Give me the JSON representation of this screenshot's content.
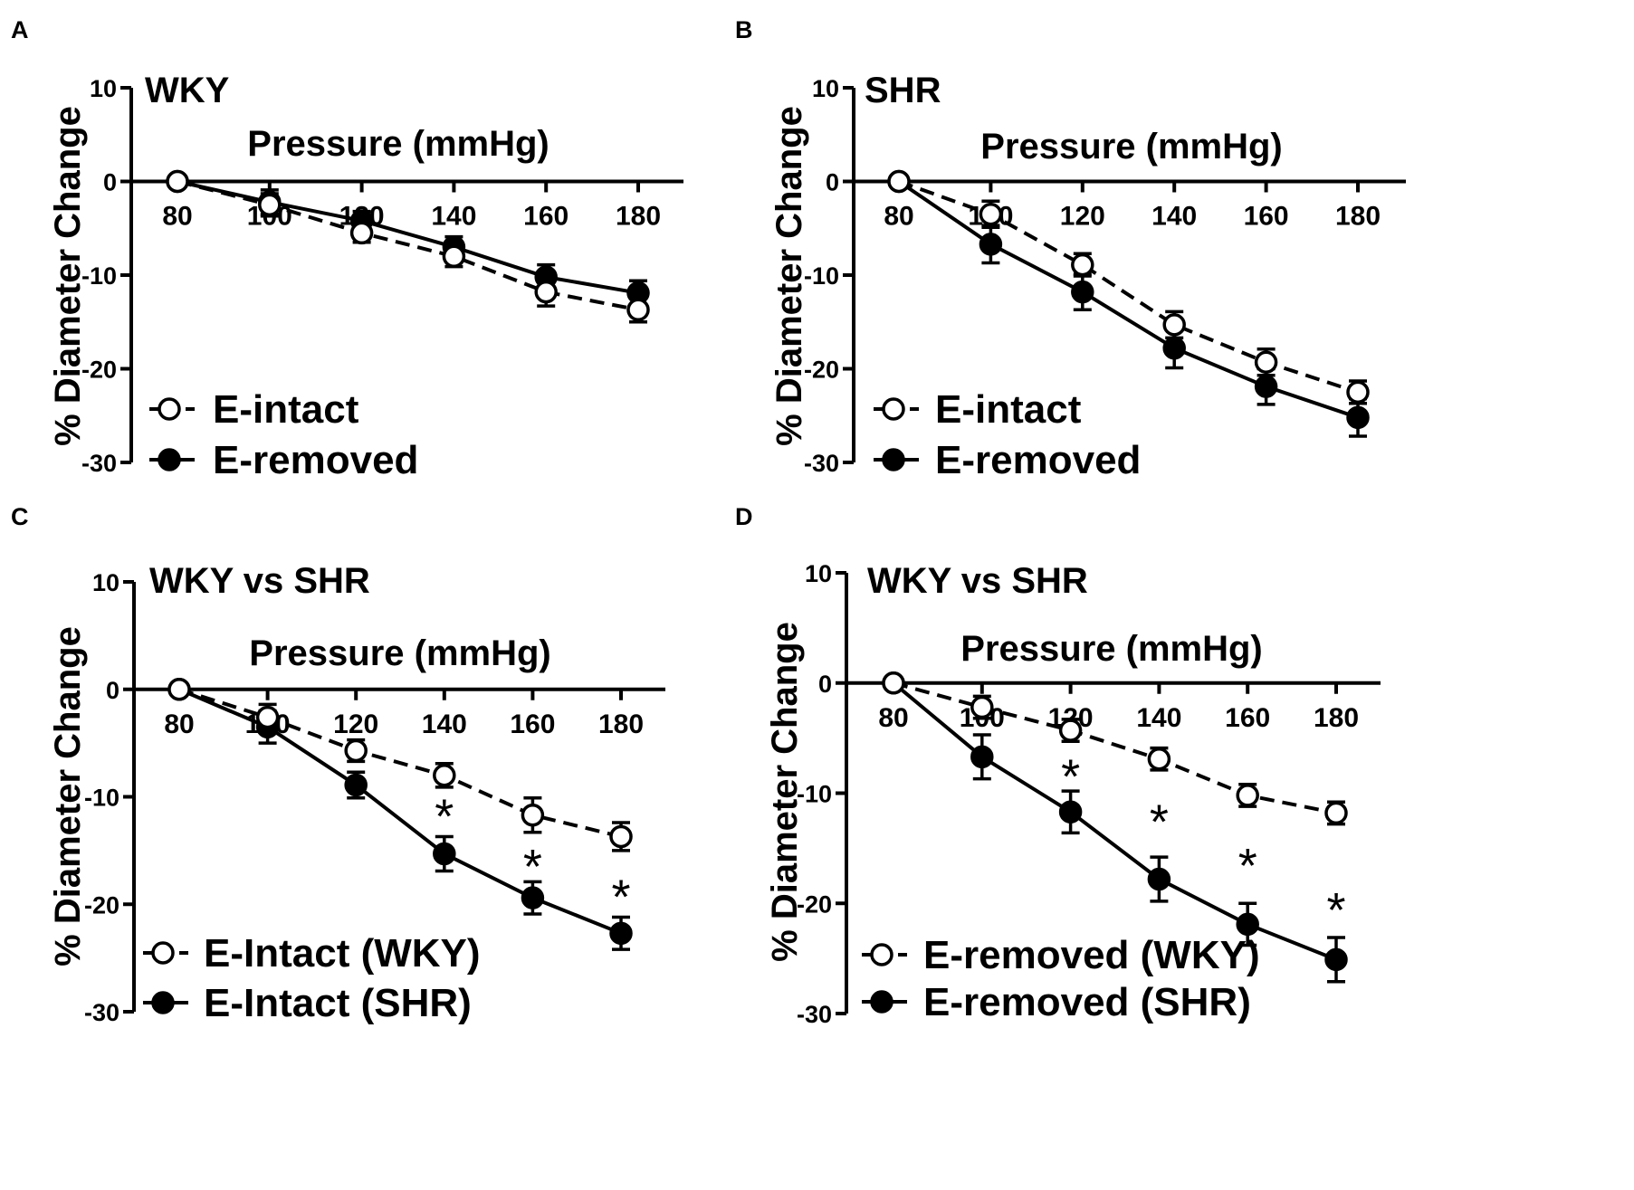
{
  "chart_data": [
    {
      "type": "line",
      "panel_letter": "A",
      "title": "WKY",
      "xlabel": "Pressure (mmHg)",
      "ylabel": "% Diameter Change",
      "xlim": [
        70,
        190
      ],
      "ylim": [
        -30,
        10
      ],
      "x_ticks": [
        "80",
        "100",
        "120",
        "140",
        "160",
        "180"
      ],
      "y_ticks": [
        "10",
        "0",
        "-10",
        "-20",
        "-30"
      ],
      "x": [
        80,
        100,
        120,
        140,
        160,
        180
      ],
      "legend_position": "bottom-left",
      "series": [
        {
          "name": "E-intact",
          "marker": "open",
          "dash": true,
          "values": [
            0,
            -2.5,
            -5.5,
            -8,
            -11.8,
            -13.7
          ],
          "errors": [
            0,
            1.2,
            1.0,
            1.1,
            1.5,
            1.3
          ]
        },
        {
          "name": "E-removed",
          "marker": "filled",
          "dash": false,
          "values": [
            0,
            -2.2,
            -4.2,
            -7,
            -10.2,
            -11.9
          ],
          "errors": [
            0,
            1.3,
            1.0,
            1.1,
            1.3,
            1.3
          ]
        }
      ],
      "annotations": []
    },
    {
      "type": "line",
      "panel_letter": "B",
      "title": "SHR",
      "xlabel": "Pressure (mmHg)",
      "ylabel": "% Diameter Change",
      "xlim": [
        70,
        190
      ],
      "ylim": [
        -30,
        10
      ],
      "x_ticks": [
        "80",
        "100",
        "120",
        "140",
        "160",
        "180"
      ],
      "y_ticks": [
        "10",
        "0",
        "-10",
        "-20",
        "-30"
      ],
      "x": [
        80,
        100,
        120,
        140,
        160,
        180
      ],
      "legend_position": "bottom-left",
      "series": [
        {
          "name": "E-intact",
          "marker": "open",
          "dash": true,
          "values": [
            0,
            -3.5,
            -8.9,
            -15.3,
            -19.3,
            -22.5
          ],
          "errors": [
            0,
            1.4,
            1.2,
            1.4,
            1.4,
            1.2
          ]
        },
        {
          "name": "E-removed",
          "marker": "filled",
          "dash": false,
          "values": [
            0,
            -6.7,
            -11.8,
            -17.8,
            -21.9,
            -25.2
          ],
          "errors": [
            0,
            2.0,
            1.9,
            2.1,
            1.9,
            2.0
          ]
        }
      ],
      "annotations": []
    },
    {
      "type": "line",
      "panel_letter": "C",
      "title": "WKY vs SHR",
      "xlabel": "Pressure (mmHg)",
      "ylabel": "% Diameter Change",
      "xlim": [
        70,
        190
      ],
      "ylim": [
        -30,
        10
      ],
      "x_ticks": [
        "80",
        "100",
        "120",
        "140",
        "160",
        "180"
      ],
      "y_ticks": [
        "10",
        "0",
        "-10",
        "-20",
        "-30"
      ],
      "x": [
        80,
        100,
        120,
        140,
        160,
        180
      ],
      "legend_position": "bottom-left",
      "series": [
        {
          "name": "E-Intact (WKY)",
          "marker": "open",
          "dash": true,
          "values": [
            0,
            -2.6,
            -5.7,
            -8.0,
            -11.7,
            -13.7
          ],
          "errors": [
            0,
            1.2,
            1.0,
            1.1,
            1.6,
            1.3
          ]
        },
        {
          "name": "E-Intact (SHR)",
          "marker": "filled",
          "dash": false,
          "values": [
            0,
            -3.5,
            -8.9,
            -15.3,
            -19.4,
            -22.7
          ],
          "errors": [
            0,
            1.5,
            1.2,
            1.6,
            1.5,
            1.5
          ]
        }
      ],
      "annotations": [
        {
          "text": "*",
          "x": 140,
          "y": -11.5
        },
        {
          "text": "*",
          "x": 160,
          "y": -16.2
        },
        {
          "text": "*",
          "x": 180,
          "y": -19.0
        }
      ]
    },
    {
      "type": "line",
      "panel_letter": "D",
      "title": "WKY vs SHR",
      "xlabel": "Pressure (mmHg)",
      "ylabel": "% Diameter Change",
      "xlim": [
        70,
        190
      ],
      "ylim": [
        -30,
        10
      ],
      "x_ticks": [
        "80",
        "100",
        "120",
        "140",
        "160",
        "180"
      ],
      "y_ticks": [
        "10",
        "0",
        "-10",
        "-20",
        "-30"
      ],
      "x": [
        80,
        100,
        120,
        140,
        160,
        180
      ],
      "legend_position": "bottom-left",
      "series": [
        {
          "name": "E-removed (WKY)",
          "marker": "open",
          "dash": true,
          "values": [
            0,
            -2.2,
            -4.3,
            -6.9,
            -10.2,
            -11.8
          ],
          "errors": [
            0,
            1.0,
            1.0,
            1.0,
            1.0,
            1.0
          ]
        },
        {
          "name": "E-removed (SHR)",
          "marker": "filled",
          "dash": false,
          "values": [
            0,
            -6.7,
            -11.7,
            -17.8,
            -21.9,
            -25.1
          ],
          "errors": [
            0,
            2.0,
            1.9,
            2.0,
            1.9,
            2.0
          ]
        }
      ],
      "annotations": [
        {
          "text": "*",
          "x": 120,
          "y": -8.2
        },
        {
          "text": "*",
          "x": 140,
          "y": -12.3
        },
        {
          "text": "*",
          "x": 160,
          "y": -16.3
        },
        {
          "text": "*",
          "x": 180,
          "y": -20.3
        }
      ]
    }
  ]
}
